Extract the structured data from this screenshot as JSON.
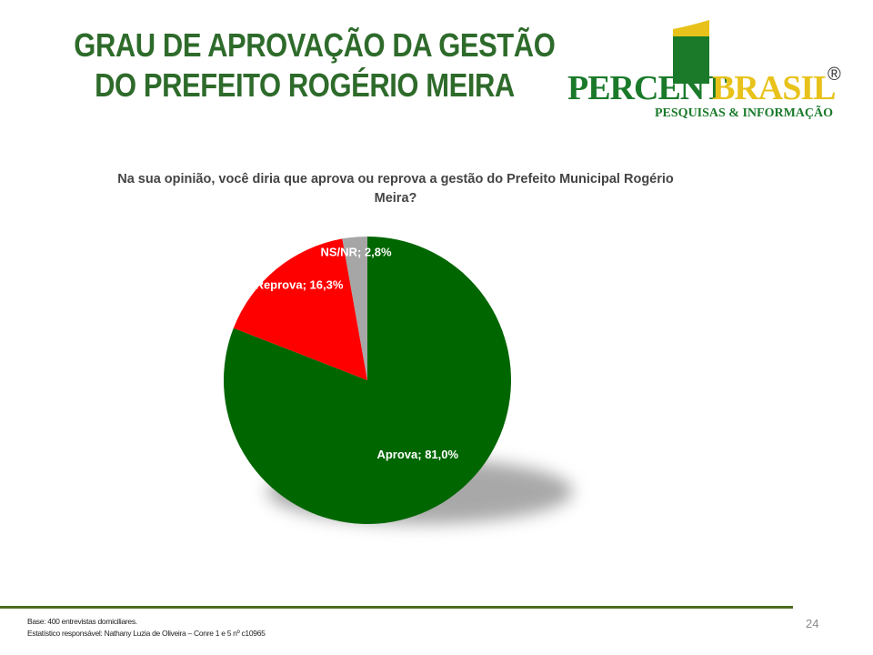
{
  "slide": {
    "title_line1": "GRAU DE APROVAÇÃO DA GESTÃO",
    "title_line2": "DO PREFEITO ROGÉRIO MEIRA",
    "question_line1": "Na sua opinião, você diria que aprova ou reprova a gestão do Prefeito Municipal Rogério",
    "question_line2": "Meira?",
    "footer_line1": "Base: 400 entrevistas domiciliares.",
    "footer_line2": "Estatístico responsável: Nathany Luzia de Oliveira – Conre 1 e 5 nº c10965",
    "page_number": "24"
  },
  "logo": {
    "word1": "PERCENT",
    "word2": "BRASIL",
    "registered": "®",
    "tagline": "PESQUISAS & INFORMAÇÃO"
  },
  "chart_data": {
    "type": "pie",
    "title": "",
    "slices": [
      {
        "name": "Aprova",
        "value": 81.0,
        "label": "Aprova; 81,0%",
        "color": "#006600"
      },
      {
        "name": "Reprova",
        "value": 16.3,
        "label": "Reprova; 16,3%",
        "color": "#ff0000"
      },
      {
        "name": "NS/NR",
        "value": 2.8,
        "label": "NS/NR; 2,8%",
        "color": "#a6a6a6"
      }
    ],
    "start": "12 o'clock",
    "direction": "clockwise",
    "legend": "none",
    "data_labels": "inside slices"
  },
  "colors": {
    "title": "#2e6b2b",
    "logo_green": "#1a7a2a",
    "logo_yellow": "#e8c21a",
    "footer_rule": "#4d6b1e"
  }
}
